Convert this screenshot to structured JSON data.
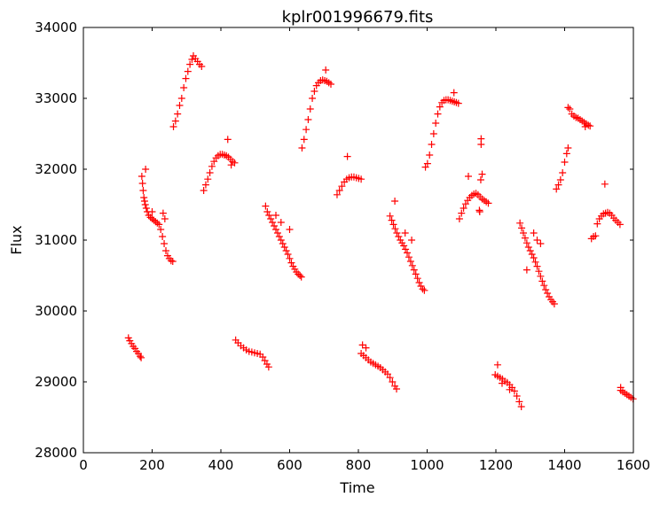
{
  "chart_data": {
    "type": "scatter",
    "title": "kplr001996679.fits",
    "xlabel": "Time",
    "ylabel": "Flux",
    "xlim": [
      0,
      1600
    ],
    "ylim": [
      28000,
      34000
    ],
    "x_ticks": [
      0,
      200,
      400,
      600,
      800,
      1000,
      1200,
      1400,
      1600
    ],
    "y_ticks": [
      28000,
      29000,
      30000,
      31000,
      32000,
      33000,
      34000
    ],
    "x_tick_labels": [
      "0",
      "200",
      "400",
      "600",
      "800",
      "1000",
      "1200",
      "1400",
      "1600"
    ],
    "y_tick_labels": [
      "28000",
      "29000",
      "30000",
      "31000",
      "32000",
      "33000",
      "34000"
    ],
    "grid": false,
    "marker": "+",
    "marker_color": "#ff0000",
    "series": [
      {
        "points": [
          [
            131,
            29620
          ],
          [
            135,
            29580
          ],
          [
            140,
            29540
          ],
          [
            145,
            29500
          ],
          [
            150,
            29470
          ],
          [
            155,
            29430
          ],
          [
            160,
            29400
          ],
          [
            165,
            29360
          ],
          [
            168,
            29340
          ],
          [
            170,
            31900
          ],
          [
            172,
            31800
          ],
          [
            174,
            31700
          ],
          [
            176,
            31600
          ],
          [
            178,
            31550
          ],
          [
            180,
            31500
          ],
          [
            183,
            31450
          ],
          [
            186,
            31400
          ],
          [
            190,
            31350
          ],
          [
            195,
            31320
          ],
          [
            200,
            31300
          ],
          [
            205,
            31280
          ],
          [
            210,
            31260
          ],
          [
            215,
            31240
          ],
          [
            220,
            31220
          ],
          [
            225,
            31150
          ],
          [
            230,
            31050
          ],
          [
            235,
            30950
          ],
          [
            240,
            30850
          ],
          [
            245,
            30780
          ],
          [
            250,
            30740
          ],
          [
            255,
            30710
          ],
          [
            260,
            30700
          ],
          [
            181,
            32000
          ],
          [
            200,
            31400
          ],
          [
            232,
            31380
          ],
          [
            237,
            31300
          ],
          [
            262,
            32600
          ],
          [
            268,
            32680
          ],
          [
            274,
            32780
          ],
          [
            280,
            32900
          ],
          [
            286,
            33000
          ],
          [
            292,
            33150
          ],
          [
            298,
            33280
          ],
          [
            304,
            33380
          ],
          [
            310,
            33480
          ],
          [
            316,
            33550
          ],
          [
            320,
            33600
          ],
          [
            326,
            33560
          ],
          [
            332,
            33520
          ],
          [
            338,
            33480
          ],
          [
            344,
            33450
          ],
          [
            350,
            31700
          ],
          [
            356,
            31780
          ],
          [
            362,
            31860
          ],
          [
            368,
            31950
          ],
          [
            374,
            32040
          ],
          [
            380,
            32110
          ],
          [
            386,
            32160
          ],
          [
            392,
            32190
          ],
          [
            398,
            32210
          ],
          [
            404,
            32210
          ],
          [
            410,
            32200
          ],
          [
            416,
            32190
          ],
          [
            422,
            32170
          ],
          [
            428,
            32140
          ],
          [
            434,
            32110
          ],
          [
            440,
            32090
          ],
          [
            420,
            32420
          ],
          [
            430,
            32060
          ],
          [
            443,
            29590
          ],
          [
            450,
            29550
          ],
          [
            458,
            29510
          ],
          [
            466,
            29480
          ],
          [
            474,
            29450
          ],
          [
            482,
            29430
          ],
          [
            490,
            29420
          ],
          [
            498,
            29410
          ],
          [
            506,
            29400
          ],
          [
            514,
            29390
          ],
          [
            522,
            29350
          ],
          [
            528,
            29300
          ],
          [
            534,
            29250
          ],
          [
            539,
            29210
          ],
          [
            530,
            31480
          ],
          [
            535,
            31400
          ],
          [
            540,
            31350
          ],
          [
            545,
            31300
          ],
          [
            550,
            31250
          ],
          [
            555,
            31200
          ],
          [
            560,
            31150
          ],
          [
            565,
            31100
          ],
          [
            570,
            31050
          ],
          [
            575,
            31000
          ],
          [
            580,
            30950
          ],
          [
            585,
            30900
          ],
          [
            590,
            30850
          ],
          [
            595,
            30800
          ],
          [
            600,
            30740
          ],
          [
            605,
            30680
          ],
          [
            610,
            30630
          ],
          [
            615,
            30590
          ],
          [
            620,
            30550
          ],
          [
            625,
            30520
          ],
          [
            630,
            30500
          ],
          [
            634,
            30480
          ],
          [
            560,
            31350
          ],
          [
            575,
            31250
          ],
          [
            600,
            31150
          ],
          [
            636,
            32300
          ],
          [
            642,
            32420
          ],
          [
            648,
            32560
          ],
          [
            654,
            32700
          ],
          [
            660,
            32850
          ],
          [
            666,
            33000
          ],
          [
            672,
            33100
          ],
          [
            678,
            33180
          ],
          [
            684,
            33220
          ],
          [
            690,
            33250
          ],
          [
            696,
            33260
          ],
          [
            702,
            33250
          ],
          [
            708,
            33240
          ],
          [
            714,
            33220
          ],
          [
            720,
            33200
          ],
          [
            705,
            33400
          ],
          [
            738,
            31640
          ],
          [
            745,
            31700
          ],
          [
            752,
            31760
          ],
          [
            759,
            31820
          ],
          [
            766,
            31860
          ],
          [
            773,
            31880
          ],
          [
            780,
            31890
          ],
          [
            787,
            31890
          ],
          [
            794,
            31880
          ],
          [
            801,
            31870
          ],
          [
            808,
            31860
          ],
          [
            768,
            32180
          ],
          [
            808,
            29400
          ],
          [
            815,
            29370
          ],
          [
            822,
            29340
          ],
          [
            829,
            29310
          ],
          [
            836,
            29280
          ],
          [
            843,
            29260
          ],
          [
            850,
            29240
          ],
          [
            857,
            29220
          ],
          [
            864,
            29200
          ],
          [
            871,
            29170
          ],
          [
            878,
            29140
          ],
          [
            885,
            29110
          ],
          [
            892,
            29060
          ],
          [
            899,
            29000
          ],
          [
            906,
            28940
          ],
          [
            911,
            28900
          ],
          [
            812,
            29520
          ],
          [
            822,
            29480
          ],
          [
            892,
            31340
          ],
          [
            897,
            31280
          ],
          [
            902,
            31220
          ],
          [
            907,
            31160
          ],
          [
            912,
            31100
          ],
          [
            917,
            31050
          ],
          [
            922,
            31000
          ],
          [
            927,
            30960
          ],
          [
            932,
            30920
          ],
          [
            937,
            30870
          ],
          [
            942,
            30820
          ],
          [
            947,
            30760
          ],
          [
            952,
            30700
          ],
          [
            957,
            30640
          ],
          [
            962,
            30580
          ],
          [
            967,
            30520
          ],
          [
            972,
            30460
          ],
          [
            977,
            30400
          ],
          [
            982,
            30350
          ],
          [
            987,
            30310
          ],
          [
            992,
            30290
          ],
          [
            906,
            31550
          ],
          [
            936,
            31100
          ],
          [
            955,
            31000
          ],
          [
            995,
            32030
          ],
          [
            1001,
            32080
          ],
          [
            1007,
            32200
          ],
          [
            1013,
            32350
          ],
          [
            1019,
            32500
          ],
          [
            1025,
            32650
          ],
          [
            1031,
            32780
          ],
          [
            1037,
            32880
          ],
          [
            1043,
            32940
          ],
          [
            1049,
            32970
          ],
          [
            1055,
            32980
          ],
          [
            1061,
            32980
          ],
          [
            1067,
            32970
          ],
          [
            1073,
            32960
          ],
          [
            1079,
            32950
          ],
          [
            1085,
            32940
          ],
          [
            1091,
            32930
          ],
          [
            1078,
            33080
          ],
          [
            1094,
            31300
          ],
          [
            1100,
            31380
          ],
          [
            1106,
            31450
          ],
          [
            1112,
            31510
          ],
          [
            1118,
            31560
          ],
          [
            1124,
            31600
          ],
          [
            1130,
            31630
          ],
          [
            1136,
            31650
          ],
          [
            1142,
            31660
          ],
          [
            1148,
            31640
          ],
          [
            1154,
            31610
          ],
          [
            1160,
            31580
          ],
          [
            1166,
            31560
          ],
          [
            1172,
            31540
          ],
          [
            1178,
            31520
          ],
          [
            1152,
            31420
          ],
          [
            1156,
            31850
          ],
          [
            1157,
            32350
          ],
          [
            1157,
            32430
          ],
          [
            1160,
            31930
          ],
          [
            1120,
            31900
          ],
          [
            1153,
            31400
          ],
          [
            1198,
            29100
          ],
          [
            1205,
            29080
          ],
          [
            1212,
            29060
          ],
          [
            1219,
            29040
          ],
          [
            1226,
            29010
          ],
          [
            1233,
            28990
          ],
          [
            1240,
            28960
          ],
          [
            1247,
            28920
          ],
          [
            1254,
            28870
          ],
          [
            1261,
            28800
          ],
          [
            1268,
            28720
          ],
          [
            1274,
            28650
          ],
          [
            1205,
            29240
          ],
          [
            1218,
            28980
          ],
          [
            1240,
            28890
          ],
          [
            1270,
            31240
          ],
          [
            1275,
            31170
          ],
          [
            1280,
            31100
          ],
          [
            1285,
            31030
          ],
          [
            1290,
            30960
          ],
          [
            1295,
            30900
          ],
          [
            1300,
            30850
          ],
          [
            1305,
            30800
          ],
          [
            1310,
            30750
          ],
          [
            1315,
            30690
          ],
          [
            1320,
            30630
          ],
          [
            1325,
            30560
          ],
          [
            1330,
            30490
          ],
          [
            1335,
            30420
          ],
          [
            1340,
            30360
          ],
          [
            1345,
            30300
          ],
          [
            1350,
            30250
          ],
          [
            1355,
            30200
          ],
          [
            1360,
            30160
          ],
          [
            1365,
            30130
          ],
          [
            1370,
            30100
          ],
          [
            1310,
            31100
          ],
          [
            1320,
            31000
          ],
          [
            1330,
            30950
          ],
          [
            1290,
            30580
          ],
          [
            1376,
            31720
          ],
          [
            1382,
            31780
          ],
          [
            1388,
            31850
          ],
          [
            1394,
            31950
          ],
          [
            1400,
            32100
          ],
          [
            1406,
            32220
          ],
          [
            1410,
            32300
          ],
          [
            1415,
            32850
          ],
          [
            1421,
            32780
          ],
          [
            1427,
            32750
          ],
          [
            1433,
            32730
          ],
          [
            1439,
            32720
          ],
          [
            1445,
            32700
          ],
          [
            1451,
            32680
          ],
          [
            1457,
            32660
          ],
          [
            1463,
            32640
          ],
          [
            1469,
            32620
          ],
          [
            1474,
            32610
          ],
          [
            1410,
            32870
          ],
          [
            1460,
            32600
          ],
          [
            1478,
            31020
          ],
          [
            1484,
            31050
          ],
          [
            1490,
            31060
          ],
          [
            1495,
            31230
          ],
          [
            1501,
            31300
          ],
          [
            1507,
            31340
          ],
          [
            1513,
            31370
          ],
          [
            1519,
            31380
          ],
          [
            1525,
            31390
          ],
          [
            1531,
            31380
          ],
          [
            1537,
            31350
          ],
          [
            1543,
            31310
          ],
          [
            1549,
            31280
          ],
          [
            1555,
            31250
          ],
          [
            1561,
            31220
          ],
          [
            1517,
            31790
          ],
          [
            1563,
            28880
          ],
          [
            1569,
            28860
          ],
          [
            1575,
            28840
          ],
          [
            1581,
            28820
          ],
          [
            1587,
            28800
          ],
          [
            1593,
            28780
          ],
          [
            1599,
            28760
          ],
          [
            1563,
            28920
          ]
        ]
      }
    ]
  }
}
